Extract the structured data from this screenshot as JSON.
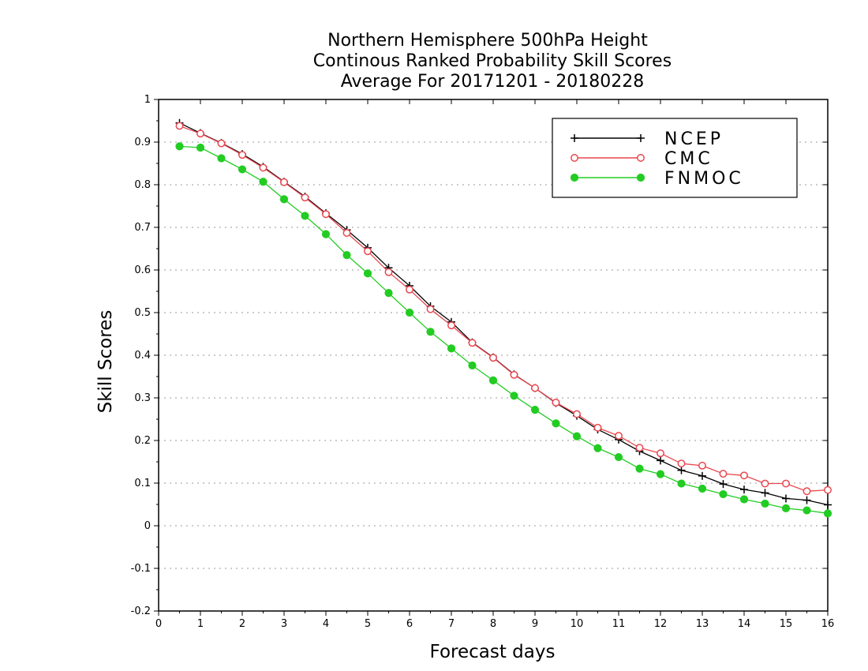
{
  "chart_data": {
    "type": "line",
    "title_lines": [
      "Northern Hemisphere 500hPa Height",
      "Continous Ranked Probability Skill Scores",
      "Average For 20171201 - 20180228"
    ],
    "xlabel": "Forecast days",
    "ylabel": "Skill Scores",
    "xlim": [
      0,
      16
    ],
    "ylim": [
      -0.2,
      1
    ],
    "x_ticks": [
      0,
      1,
      2,
      3,
      4,
      5,
      6,
      7,
      8,
      9,
      10,
      11,
      12,
      13,
      14,
      15,
      16
    ],
    "y_ticks": [
      -0.2,
      -0.1,
      0,
      0.1,
      0.2,
      0.3,
      0.4,
      0.5,
      0.6,
      0.7,
      0.8,
      0.9,
      1
    ],
    "y_tick_labels": [
      "-0.2",
      "-0.1",
      "0",
      "0.1",
      "0.2",
      "0.3",
      "0.4",
      "0.5",
      "0.6",
      "0.7",
      "0.8",
      "0.9",
      "1"
    ],
    "grid": "horizontal dotted",
    "legend_position": "top-right",
    "x": [
      0.5,
      1,
      1.5,
      2,
      2.5,
      3,
      3.5,
      4,
      4.5,
      5,
      5.5,
      6,
      6.5,
      7,
      7.5,
      8,
      8.5,
      9,
      9.5,
      10,
      10.5,
      11,
      11.5,
      12,
      12.5,
      13,
      13.5,
      14,
      14.5,
      15,
      15.5,
      16
    ],
    "series": [
      {
        "name": "NCEP",
        "color": "#000000",
        "marker": "plus",
        "values": [
          0.945,
          0.921,
          0.898,
          0.872,
          0.842,
          0.807,
          0.772,
          0.733,
          0.694,
          0.652,
          0.605,
          0.563,
          0.515,
          0.478,
          0.43,
          0.395,
          0.355,
          0.323,
          0.288,
          0.258,
          0.226,
          0.202,
          0.175,
          0.153,
          0.13,
          0.117,
          0.098,
          0.085,
          0.077,
          0.064,
          0.06,
          0.049
        ]
      },
      {
        "name": "CMC",
        "color": "#e8474f",
        "marker": "open-circle",
        "values": [
          0.938,
          0.92,
          0.897,
          0.87,
          0.84,
          0.806,
          0.77,
          0.731,
          0.687,
          0.644,
          0.595,
          0.554,
          0.508,
          0.47,
          0.429,
          0.394,
          0.354,
          0.323,
          0.289,
          0.262,
          0.23,
          0.211,
          0.183,
          0.17,
          0.146,
          0.141,
          0.122,
          0.118,
          0.099,
          0.099,
          0.081,
          0.084
        ]
      },
      {
        "name": "FNMOC",
        "color": "#22cc22",
        "marker": "filled-circle",
        "values": [
          0.89,
          0.887,
          0.862,
          0.836,
          0.807,
          0.766,
          0.727,
          0.684,
          0.635,
          0.592,
          0.546,
          0.5,
          0.455,
          0.416,
          0.376,
          0.341,
          0.305,
          0.272,
          0.24,
          0.21,
          0.182,
          0.161,
          0.134,
          0.121,
          0.099,
          0.087,
          0.074,
          0.062,
          0.052,
          0.041,
          0.036,
          0.029
        ]
      }
    ]
  }
}
